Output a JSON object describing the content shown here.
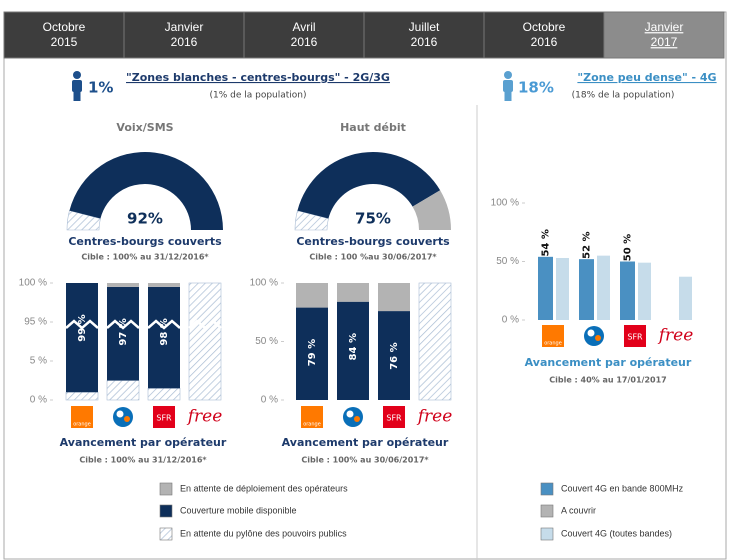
{
  "tabs": [
    {
      "month": "Octobre",
      "year": "2015",
      "active": false
    },
    {
      "month": "Janvier",
      "year": "2016",
      "active": false
    },
    {
      "month": "Avril",
      "year": "2016",
      "active": false
    },
    {
      "month": "Juillet",
      "year": "2016",
      "active": false
    },
    {
      "month": "Octobre",
      "year": "2016",
      "active": false
    },
    {
      "month": "Janvier",
      "year": "2017",
      "active": true
    }
  ],
  "left_header": {
    "share": "1%",
    "title": "\"Zones blanches - centres-bourgs\" - 2G/3G",
    "subtitle": "(1% de la population)"
  },
  "right_header": {
    "share": "18%",
    "title": "\"Zone peu dense\" - 4G",
    "subtitle": "(18% de la population)"
  },
  "gauges": [
    {
      "title": "Voix/SMS",
      "range": [
        0,
        100
      ],
      "caption": "Centres-bourgs couverts",
      "note": "Cible : 100% au 31/12/2016*",
      "segments": [
        {
          "value": 8,
          "color": "#a9bcd4",
          "hatched": true
        },
        {
          "value": 92,
          "color": "#0e2f5a",
          "label": "92%"
        }
      ]
    },
    {
      "title": "Haut débit",
      "range": [
        0,
        100
      ],
      "caption": "Centres-bourgs couverts",
      "note": "Cible : 100 %au 30/06/2017*",
      "segments": [
        {
          "value": 8,
          "color": "#a9bcd4",
          "hatched": true
        },
        {
          "value": 75,
          "color": "#0e2f5a",
          "label": "75%"
        },
        {
          "value": 17,
          "color": "#b3b3b3"
        }
      ]
    }
  ],
  "chart_data": [
    {
      "type": "bar",
      "stacked": true,
      "scale": "broken",
      "break": [
        5,
        95
      ],
      "categories": [
        "orange",
        null,
        "SFR",
        "free"
      ],
      "ylim": [
        0,
        100
      ],
      "yticks": [
        {
          "value": 0,
          "label": "0 %"
        },
        {
          "value": 5,
          "label": "5 %"
        },
        {
          "value": 95,
          "label": "95 %"
        },
        {
          "value": 100,
          "label": "100 %"
        }
      ],
      "series": [
        {
          "name": "En attente du pylône des pouvoirs publics",
          "color": "#a9bcd4",
          "hatched": true,
          "values": [
            1,
            2.5,
            1.5,
            100
          ]
        },
        {
          "name": "Couverture mobile disponible",
          "color": "#0e2f5a",
          "values": [
            99,
            97,
            98,
            0
          ],
          "value_labels": [
            "99 %",
            "97 %",
            "98 %",
            null
          ]
        },
        {
          "name": "En attente de déploiement des opérateurs",
          "color": "#b3b3b3",
          "values": [
            0,
            0.5,
            0.5,
            0
          ]
        }
      ],
      "caption": "Avancement par opérateur",
      "note": "Cible : 100% au 31/12/2016*"
    },
    {
      "type": "bar",
      "stacked": true,
      "categories": [
        "orange",
        null,
        "SFR",
        "free"
      ],
      "ylim": [
        0,
        100
      ],
      "yticks": [
        {
          "value": 0,
          "label": "0 %"
        },
        {
          "value": 50,
          "label": "50 %"
        },
        {
          "value": 100,
          "label": "100 %"
        }
      ],
      "series": [
        {
          "color": "#a9bcd4",
          "hatched": true,
          "values": [
            0,
            0,
            0,
            100
          ]
        },
        {
          "color": "#0e2f5a",
          "values": [
            79,
            84,
            76,
            0
          ],
          "value_labels": [
            "79 %",
            "84 %",
            "76 %",
            null
          ]
        },
        {
          "color": "#b3b3b3",
          "values": [
            21,
            16,
            24,
            0
          ]
        }
      ],
      "caption": "Avancement par opérateur",
      "note": "Cible : 100% au 30/06/2017*"
    },
    {
      "type": "bar",
      "stacked": false,
      "categories": [
        "orange",
        null,
        "SFR",
        "free"
      ],
      "ylim": [
        0,
        100
      ],
      "yticks": [
        {
          "value": 0,
          "label": "0 %"
        },
        {
          "value": 50,
          "label": "50 %"
        },
        {
          "value": 100,
          "label": "100 %"
        }
      ],
      "series": [
        {
          "name": "Couvert 4G en bande 800MHz",
          "color": "#4a90c2",
          "values": [
            54,
            52,
            50,
            0
          ],
          "value_labels": [
            "54 %",
            "52 %",
            "50 %",
            null
          ]
        },
        {
          "name": "Couvert 4G (toutes bandes)",
          "color": "#c6dcea",
          "values": [
            53,
            55,
            49,
            37
          ]
        }
      ],
      "extra_legend": [
        {
          "name": "A couvrir",
          "color": "#b3b3b3"
        }
      ],
      "caption": "Avancement par opérateur",
      "note": "Cible : 40% au 17/01/2017"
    }
  ]
}
